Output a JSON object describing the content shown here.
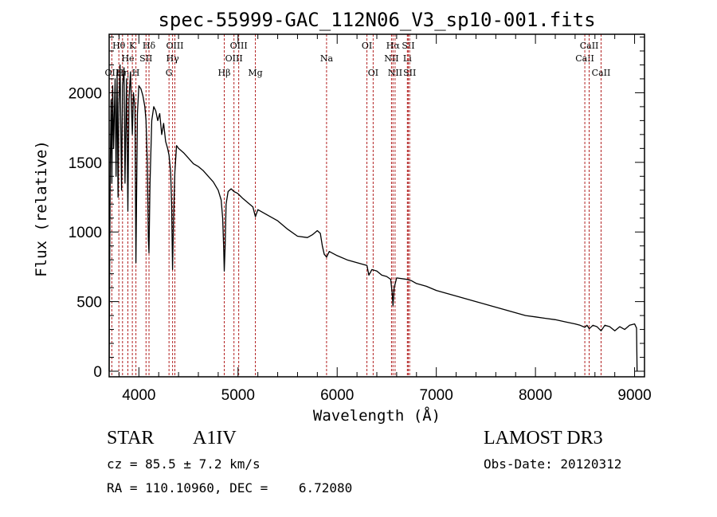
{
  "chart_data": {
    "type": "line",
    "title": "spec-55999-GAC_112N06_V3_sp10-001.fits",
    "xlabel": "Wavelength (Å)",
    "ylabel": "Flux (relative)",
    "xlim": [
      3700,
      9100
    ],
    "ylim": [
      -40,
      2420
    ],
    "x_ticks": [
      4000,
      5000,
      6000,
      7000,
      8000,
      9000
    ],
    "x_tick_labels": [
      "4000",
      "5000",
      "6000",
      "7000",
      "8000",
      "9000"
    ],
    "y_ticks": [
      0,
      500,
      1000,
      1500,
      2000
    ],
    "y_tick_labels": [
      "0",
      "500",
      "1000",
      "1500",
      "2000"
    ],
    "grid": false,
    "series": [
      {
        "name": "spectrum",
        "color": "#000000",
        "points": [
          [
            3700,
            0
          ],
          [
            3705,
            720
          ],
          [
            3712,
            1500
          ],
          [
            3720,
            1950
          ],
          [
            3727,
            1350
          ],
          [
            3735,
            2050
          ],
          [
            3745,
            1600
          ],
          [
            3760,
            2100
          ],
          [
            3770,
            1400
          ],
          [
            3780,
            2150
          ],
          [
            3790,
            1250
          ],
          [
            3798,
            1900
          ],
          [
            3810,
            2200
          ],
          [
            3825,
            1300
          ],
          [
            3835,
            2050
          ],
          [
            3850,
            2180
          ],
          [
            3860,
            1350
          ],
          [
            3875,
            2100
          ],
          [
            3889,
            1150
          ],
          [
            3900,
            1950
          ],
          [
            3915,
            2150
          ],
          [
            3925,
            1900
          ],
          [
            3934,
            1700
          ],
          [
            3945,
            2000
          ],
          [
            3960,
            1900
          ],
          [
            3970,
            780
          ],
          [
            3985,
            1850
          ],
          [
            4000,
            2050
          ],
          [
            4020,
            2030
          ],
          [
            4040,
            1980
          ],
          [
            4060,
            1900
          ],
          [
            4072,
            1800
          ],
          [
            4085,
            1500
          ],
          [
            4095,
            950
          ],
          [
            4102,
            850
          ],
          [
            4112,
            1350
          ],
          [
            4130,
            1800
          ],
          [
            4150,
            1900
          ],
          [
            4170,
            1870
          ],
          [
            4190,
            1800
          ],
          [
            4210,
            1850
          ],
          [
            4230,
            1700
          ],
          [
            4250,
            1780
          ],
          [
            4270,
            1650
          ],
          [
            4290,
            1600
          ],
          [
            4304,
            1550
          ],
          [
            4320,
            1430
          ],
          [
            4330,
            1200
          ],
          [
            4340,
            730
          ],
          [
            4350,
            1100
          ],
          [
            4363,
            1430
          ],
          [
            4380,
            1620
          ],
          [
            4400,
            1600
          ],
          [
            4450,
            1570
          ],
          [
            4500,
            1530
          ],
          [
            4550,
            1490
          ],
          [
            4600,
            1470
          ],
          [
            4650,
            1440
          ],
          [
            4700,
            1400
          ],
          [
            4750,
            1360
          ],
          [
            4800,
            1300
          ],
          [
            4830,
            1230
          ],
          [
            4845,
            1100
          ],
          [
            4855,
            900
          ],
          [
            4861,
            720
          ],
          [
            4870,
            900
          ],
          [
            4880,
            1200
          ],
          [
            4900,
            1290
          ],
          [
            4930,
            1310
          ],
          [
            4959,
            1290
          ],
          [
            4990,
            1280
          ],
          [
            5007,
            1270
          ],
          [
            5050,
            1240
          ],
          [
            5100,
            1210
          ],
          [
            5150,
            1180
          ],
          [
            5175,
            1110
          ],
          [
            5200,
            1160
          ],
          [
            5300,
            1120
          ],
          [
            5400,
            1080
          ],
          [
            5500,
            1020
          ],
          [
            5600,
            970
          ],
          [
            5700,
            960
          ],
          [
            5750,
            980
          ],
          [
            5800,
            1010
          ],
          [
            5830,
            990
          ],
          [
            5850,
            900
          ],
          [
            5870,
            840
          ],
          [
            5893,
            820
          ],
          [
            5920,
            860
          ],
          [
            6000,
            830
          ],
          [
            6100,
            800
          ],
          [
            6200,
            780
          ],
          [
            6300,
            760
          ],
          [
            6320,
            690
          ],
          [
            6350,
            730
          ],
          [
            6400,
            720
          ],
          [
            6450,
            690
          ],
          [
            6500,
            680
          ],
          [
            6540,
            660
          ],
          [
            6555,
            560
          ],
          [
            6563,
            470
          ],
          [
            6575,
            600
          ],
          [
            6600,
            670
          ],
          [
            6700,
            660
          ],
          [
            6750,
            650
          ],
          [
            6800,
            630
          ],
          [
            6900,
            610
          ],
          [
            7000,
            580
          ],
          [
            7100,
            560
          ],
          [
            7200,
            540
          ],
          [
            7300,
            520
          ],
          [
            7400,
            500
          ],
          [
            7500,
            480
          ],
          [
            7600,
            460
          ],
          [
            7700,
            440
          ],
          [
            7800,
            420
          ],
          [
            7900,
            400
          ],
          [
            8000,
            390
          ],
          [
            8100,
            380
          ],
          [
            8200,
            370
          ],
          [
            8300,
            355
          ],
          [
            8400,
            340
          ],
          [
            8450,
            330
          ],
          [
            8498,
            315
          ],
          [
            8520,
            330
          ],
          [
            8542,
            305
          ],
          [
            8580,
            330
          ],
          [
            8620,
            320
          ],
          [
            8662,
            290
          ],
          [
            8700,
            330
          ],
          [
            8750,
            320
          ],
          [
            8800,
            290
          ],
          [
            8850,
            320
          ],
          [
            8900,
            300
          ],
          [
            8950,
            330
          ],
          [
            9000,
            340
          ],
          [
            9020,
            310
          ],
          [
            9025,
            0
          ]
        ]
      }
    ],
    "line_markers": [
      {
        "label": "OII",
        "wavelength": 3727,
        "row": 2
      },
      {
        "label": "Hθ",
        "wavelength": 3798,
        "row": 0
      },
      {
        "label": "Hη",
        "wavelength": 3835,
        "row": 2
      },
      {
        "label": "He",
        "wavelength": 3889,
        "row": 1
      },
      {
        "label": "K",
        "wavelength": 3934,
        "row": 0
      },
      {
        "label": "H",
        "wavelength": 3970,
        "row": 2
      },
      {
        "label": "SII",
        "wavelength": 4072,
        "row": 1
      },
      {
        "label": "Hδ",
        "wavelength": 4102,
        "row": 0
      },
      {
        "label": "G",
        "wavelength": 4304,
        "row": 2
      },
      {
        "label": "Hγ",
        "wavelength": 4340,
        "row": 1
      },
      {
        "label": "OIII",
        "wavelength": 4363,
        "row": 0
      },
      {
        "label": "Hβ",
        "wavelength": 4861,
        "row": 2
      },
      {
        "label": "OIII",
        "wavelength": 4959,
        "row": 1
      },
      {
        "label": "OIII",
        "wavelength": 5007,
        "row": 0
      },
      {
        "label": "Mg",
        "wavelength": 5175,
        "row": 2
      },
      {
        "label": "Na",
        "wavelength": 5893,
        "row": 1
      },
      {
        "label": "OI",
        "wavelength": 6300,
        "row": 0
      },
      {
        "label": "OI",
        "wavelength": 6363,
        "row": 2
      },
      {
        "label": "NII",
        "wavelength": 6548,
        "row": 1
      },
      {
        "label": "Hα",
        "wavelength": 6563,
        "row": 0
      },
      {
        "label": "NII",
        "wavelength": 6584,
        "row": 2
      },
      {
        "label": "Li",
        "wavelength": 6708,
        "row": 1
      },
      {
        "label": "SII",
        "wavelength": 6717,
        "row": 0
      },
      {
        "label": "SII",
        "wavelength": 6731,
        "row": 2
      },
      {
        "label": "CaII",
        "wavelength": 8498,
        "row": 1
      },
      {
        "label": "CaII",
        "wavelength": 8542,
        "row": 0
      },
      {
        "label": "CaII",
        "wavelength": 8662,
        "row": 2
      }
    ],
    "marker_color": "#b22222"
  },
  "info": {
    "object_class": "STAR",
    "subclass": "A1IV",
    "survey": "LAMOST DR3",
    "redshift_line": "cz = 85.5 ± 7.2 km/s",
    "obs_date_line": "Obs-Date: 20120312",
    "coords_line": "RA = 110.10960, DEC =    6.72080"
  }
}
